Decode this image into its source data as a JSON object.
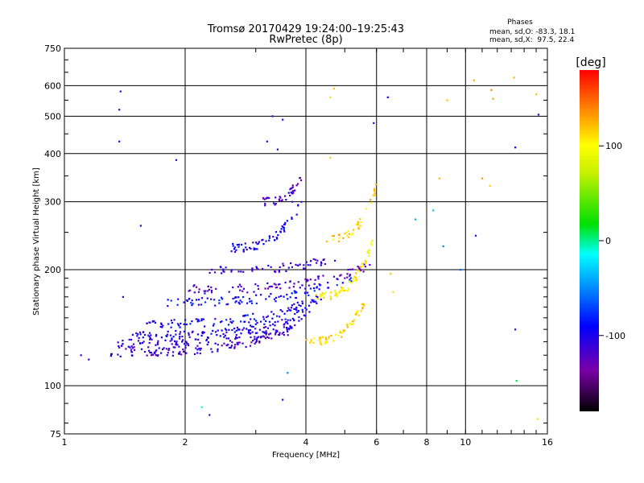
{
  "chart_data": {
    "type": "scatter",
    "title": "Tromsø 20170429 19:24:00–19:25:43",
    "subtitle": "RwPretec (8p)",
    "xlabel": "Frequency [MHz]",
    "ylabel": "Stationary phase Virtual Height [km]",
    "x_scale": "log",
    "y_scale": "log",
    "xlim": [
      1,
      16
    ],
    "ylim": [
      75,
      750
    ],
    "x_ticks": [
      1,
      2,
      4,
      6,
      8,
      10,
      16
    ],
    "y_ticks": [
      75,
      100,
      200,
      300,
      400,
      500,
      600,
      750
    ],
    "grid": true,
    "stats": {
      "title": "Phases",
      "line1": "mean, sd,O: -83.3, 18.1",
      "line2": "mean, sd,X:  97.5, 22.4"
    },
    "colorbar": {
      "label": "[deg]",
      "range": [
        -180,
        180
      ],
      "ticks": [
        100,
        0,
        -100
      ]
    },
    "traces": [
      {
        "x0": 1.3,
        "x1": 3.7,
        "y0": 122,
        "y1": 140,
        "phase": -115,
        "count": 120
      },
      {
        "x0": 1.35,
        "x1": 4.0,
        "y0": 128,
        "y1": 150,
        "phase": -108,
        "count": 110
      },
      {
        "x0": 1.45,
        "x1": 4.2,
        "y0": 135,
        "y1": 160,
        "phase": -100,
        "count": 110
      },
      {
        "x0": 1.6,
        "x1": 4.5,
        "y0": 145,
        "y1": 172,
        "phase": -95,
        "count": 100
      },
      {
        "x0": 1.8,
        "x1": 5.2,
        "y0": 165,
        "y1": 190,
        "phase": -90,
        "count": 90
      },
      {
        "x0": 2.0,
        "x1": 5.8,
        "y0": 178,
        "y1": 205,
        "phase": -120,
        "count": 90
      },
      {
        "x0": 2.3,
        "x1": 4.8,
        "y0": 200,
        "y1": 215,
        "phase": -110,
        "count": 60
      },
      {
        "x0": 2.6,
        "x1": 3.9,
        "y0": 228,
        "y1": 300,
        "phase": -100,
        "count": 60
      },
      {
        "x0": 3.1,
        "x1": 3.9,
        "y0": 300,
        "y1": 350,
        "phase": -120,
        "count": 40
      },
      {
        "x0": 4.0,
        "x1": 5.6,
        "y0": 130,
        "y1": 165,
        "phase": 110,
        "count": 60
      },
      {
        "x0": 4.2,
        "x1": 5.9,
        "y0": 170,
        "y1": 240,
        "phase": 105,
        "count": 60
      },
      {
        "x0": 4.5,
        "x1": 6.0,
        "y0": 240,
        "y1": 330,
        "phase": 115,
        "count": 40
      }
    ],
    "scatter_points": [
      {
        "x": 1.38,
        "y": 580,
        "phase": -110
      },
      {
        "x": 1.37,
        "y": 520,
        "phase": -105
      },
      {
        "x": 1.37,
        "y": 430,
        "phase": -100
      },
      {
        "x": 1.9,
        "y": 385,
        "phase": -110
      },
      {
        "x": 1.55,
        "y": 260,
        "phase": -100
      },
      {
        "x": 3.3,
        "y": 500,
        "phase": -115
      },
      {
        "x": 3.5,
        "y": 490,
        "phase": -105
      },
      {
        "x": 3.2,
        "y": 430,
        "phase": -100
      },
      {
        "x": 3.4,
        "y": 410,
        "phase": -110
      },
      {
        "x": 4.7,
        "y": 590,
        "phase": 120
      },
      {
        "x": 4.6,
        "y": 560,
        "phase": 110
      },
      {
        "x": 4.6,
        "y": 390,
        "phase": 115
      },
      {
        "x": 5.9,
        "y": 480,
        "phase": -110
      },
      {
        "x": 6.4,
        "y": 560,
        "phase": -90
      },
      {
        "x": 7.5,
        "y": 270,
        "phase": -40
      },
      {
        "x": 8.3,
        "y": 285,
        "phase": -30
      },
      {
        "x": 8.6,
        "y": 345,
        "phase": 125
      },
      {
        "x": 8.8,
        "y": 230,
        "phase": -50
      },
      {
        "x": 9.0,
        "y": 550,
        "phase": 120
      },
      {
        "x": 9.7,
        "y": 200,
        "phase": -60
      },
      {
        "x": 10.5,
        "y": 620,
        "phase": 125
      },
      {
        "x": 10.6,
        "y": 245,
        "phase": -110
      },
      {
        "x": 11.0,
        "y": 345,
        "phase": 130
      },
      {
        "x": 11.5,
        "y": 330,
        "phase": 115
      },
      {
        "x": 11.6,
        "y": 585,
        "phase": 140
      },
      {
        "x": 11.7,
        "y": 555,
        "phase": 130
      },
      {
        "x": 13.2,
        "y": 630,
        "phase": 125
      },
      {
        "x": 13.3,
        "y": 415,
        "phase": -100
      },
      {
        "x": 13.3,
        "y": 140,
        "phase": -110
      },
      {
        "x": 13.4,
        "y": 103,
        "phase": 10
      },
      {
        "x": 15.0,
        "y": 570,
        "phase": 120
      },
      {
        "x": 15.2,
        "y": 505,
        "phase": -110
      },
      {
        "x": 15.1,
        "y": 82,
        "phase": 110
      },
      {
        "x": 2.2,
        "y": 88,
        "phase": -10
      },
      {
        "x": 2.3,
        "y": 84,
        "phase": -110
      },
      {
        "x": 3.5,
        "y": 92,
        "phase": -110
      },
      {
        "x": 3.6,
        "y": 108,
        "phase": -50
      },
      {
        "x": 3.7,
        "y": 300,
        "phase": -110
      },
      {
        "x": 1.4,
        "y": 170,
        "phase": -110
      },
      {
        "x": 1.1,
        "y": 120,
        "phase": -110
      },
      {
        "x": 1.15,
        "y": 117,
        "phase": -110
      },
      {
        "x": 6.5,
        "y": 195,
        "phase": 120
      },
      {
        "x": 6.6,
        "y": 175,
        "phase": 110
      }
    ]
  }
}
